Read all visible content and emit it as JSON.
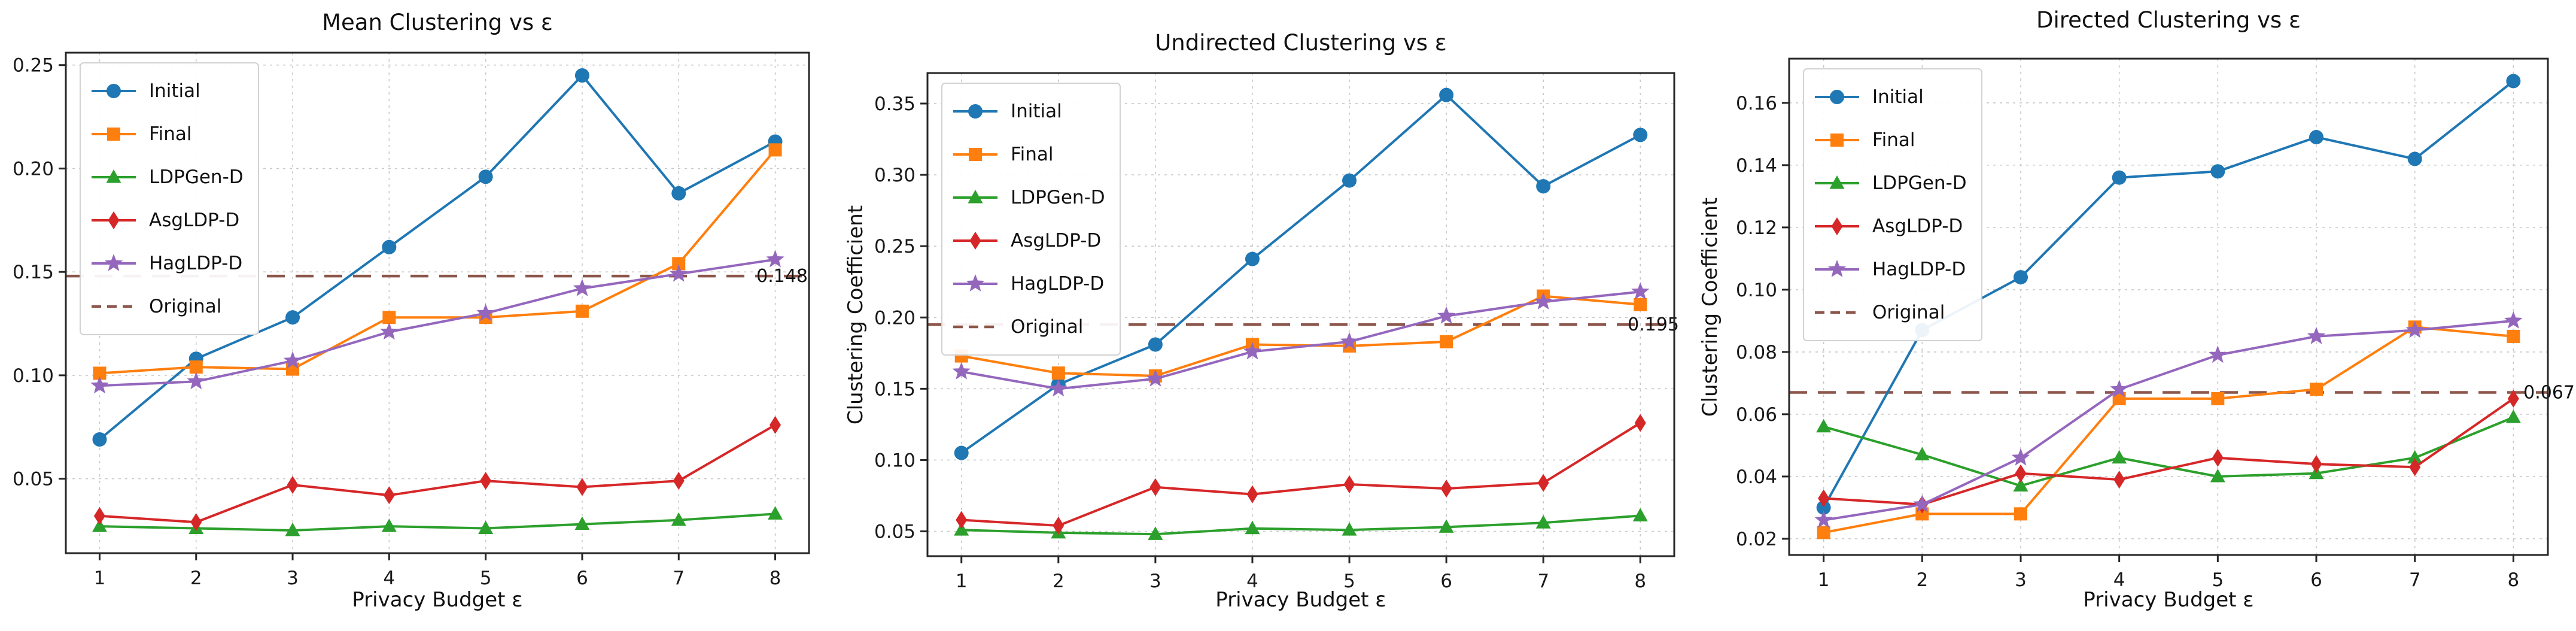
{
  "figure": {
    "background": "#ffffff",
    "grid": true,
    "legend_position": "upper-left"
  },
  "chart_data": [
    {
      "type": "line",
      "title": "Mean Clustering vs ε",
      "xlabel": "Privacy Budget ε",
      "ylabel": "",
      "x": [
        1,
        2,
        3,
        4,
        5,
        6,
        7,
        8
      ],
      "xtick_labels": [
        "1",
        "2",
        "3",
        "4",
        "5",
        "6",
        "7",
        "8"
      ],
      "xlim": [
        0.65,
        8.35
      ],
      "ylim": [
        0.014,
        0.256
      ],
      "yticks": [
        0.05,
        0.1,
        0.15,
        0.2,
        0.25
      ],
      "ytick_labels": [
        "0.05",
        "0.10",
        "0.15",
        "0.20",
        "0.25"
      ],
      "series": [
        {
          "name": "Initial",
          "color": "#1f77b4",
          "marker": "circle",
          "values": [
            0.069,
            0.108,
            0.128,
            0.162,
            0.196,
            0.245,
            0.188,
            0.213
          ]
        },
        {
          "name": "Final",
          "color": "#ff7f0e",
          "marker": "square",
          "values": [
            0.101,
            0.104,
            0.103,
            0.128,
            0.128,
            0.131,
            0.154,
            0.209
          ]
        },
        {
          "name": "LDPGen-D",
          "color": "#2ca02c",
          "marker": "triangle",
          "values": [
            0.027,
            0.026,
            0.025,
            0.027,
            0.026,
            0.028,
            0.03,
            0.033
          ]
        },
        {
          "name": "AsgLDP-D",
          "color": "#d62728",
          "marker": "diamond",
          "values": [
            0.032,
            0.029,
            0.047,
            0.042,
            0.049,
            0.046,
            0.049,
            0.076
          ]
        },
        {
          "name": "HagLDP-D",
          "color": "#9467bd",
          "marker": "star",
          "values": [
            0.095,
            0.097,
            0.107,
            0.121,
            0.13,
            0.142,
            0.149,
            0.156
          ]
        }
      ],
      "reference": {
        "name": "Original",
        "color": "#8c564b",
        "style": "dashed",
        "value": 0.148,
        "annotation": "0.148"
      }
    },
    {
      "type": "line",
      "title": "Undirected Clustering vs ε",
      "xlabel": "Privacy Budget ε",
      "ylabel": "Clustering Coefficient",
      "x": [
        1,
        2,
        3,
        4,
        5,
        6,
        7,
        8
      ],
      "xtick_labels": [
        "1",
        "2",
        "3",
        "4",
        "5",
        "6",
        "7",
        "8"
      ],
      "xlim": [
        0.65,
        8.35
      ],
      "ylim": [
        0.0326,
        0.3714
      ],
      "yticks": [
        0.05,
        0.1,
        0.15,
        0.2,
        0.25,
        0.3,
        0.35
      ],
      "ytick_labels": [
        "0.05",
        "0.10",
        "0.15",
        "0.20",
        "0.25",
        "0.30",
        "0.35"
      ],
      "series": [
        {
          "name": "Initial",
          "color": "#1f77b4",
          "marker": "circle",
          "values": [
            0.105,
            0.153,
            0.181,
            0.241,
            0.296,
            0.356,
            0.292,
            0.328
          ]
        },
        {
          "name": "Final",
          "color": "#ff7f0e",
          "marker": "square",
          "values": [
            0.173,
            0.161,
            0.159,
            0.181,
            0.18,
            0.183,
            0.215,
            0.209
          ]
        },
        {
          "name": "LDPGen-D",
          "color": "#2ca02c",
          "marker": "triangle",
          "values": [
            0.051,
            0.049,
            0.048,
            0.052,
            0.051,
            0.053,
            0.056,
            0.061
          ]
        },
        {
          "name": "AsgLDP-D",
          "color": "#d62728",
          "marker": "diamond",
          "values": [
            0.058,
            0.054,
            0.081,
            0.076,
            0.083,
            0.08,
            0.084,
            0.126
          ]
        },
        {
          "name": "HagLDP-D",
          "color": "#9467bd",
          "marker": "star",
          "values": [
            0.162,
            0.15,
            0.157,
            0.176,
            0.183,
            0.201,
            0.211,
            0.218
          ]
        }
      ],
      "reference": {
        "name": "Original",
        "color": "#8c564b",
        "style": "dashed",
        "value": 0.195,
        "annotation": "0.195"
      }
    },
    {
      "type": "line",
      "title": "Directed Clustering vs ε",
      "xlabel": "Privacy Budget ε",
      "ylabel": "Clustering Coefficient",
      "x": [
        1,
        2,
        3,
        4,
        5,
        6,
        7,
        8
      ],
      "xtick_labels": [
        "1",
        "2",
        "3",
        "4",
        "5",
        "6",
        "7",
        "8"
      ],
      "xlim": [
        0.65,
        8.35
      ],
      "ylim": [
        0.0148,
        0.1742
      ],
      "yticks": [
        0.02,
        0.04,
        0.06,
        0.08,
        0.1,
        0.12,
        0.14,
        0.16
      ],
      "ytick_labels": [
        "0.02",
        "0.04",
        "0.06",
        "0.08",
        "0.10",
        "0.12",
        "0.14",
        "0.16"
      ],
      "series": [
        {
          "name": "Initial",
          "color": "#1f77b4",
          "marker": "circle",
          "values": [
            0.03,
            0.087,
            0.104,
            0.136,
            0.138,
            0.149,
            0.142,
            0.167
          ]
        },
        {
          "name": "Final",
          "color": "#ff7f0e",
          "marker": "square",
          "values": [
            0.022,
            0.028,
            0.028,
            0.065,
            0.065,
            0.068,
            0.088,
            0.085
          ]
        },
        {
          "name": "LDPGen-D",
          "color": "#2ca02c",
          "marker": "triangle",
          "values": [
            0.056,
            0.047,
            0.037,
            0.046,
            0.04,
            0.041,
            0.046,
            0.059
          ]
        },
        {
          "name": "AsgLDP-D",
          "color": "#d62728",
          "marker": "diamond",
          "values": [
            0.033,
            0.031,
            0.041,
            0.039,
            0.046,
            0.044,
            0.043,
            0.065
          ]
        },
        {
          "name": "HagLDP-D",
          "color": "#9467bd",
          "marker": "star",
          "values": [
            0.026,
            0.031,
            0.046,
            0.068,
            0.079,
            0.085,
            0.087,
            0.09
          ]
        }
      ],
      "reference": {
        "name": "Original",
        "color": "#8c564b",
        "style": "dashed",
        "value": 0.067,
        "annotation": "0.067"
      }
    }
  ]
}
